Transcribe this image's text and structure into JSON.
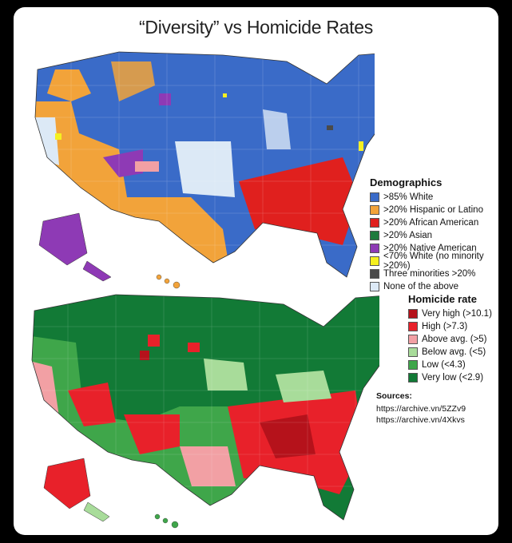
{
  "title": "“Diversity” vs Homicide Rates",
  "demographics": {
    "heading": "Demographics",
    "items": [
      {
        "label": ">85% White",
        "color": "#3a6bc8"
      },
      {
        "label": ">20% Hispanic or Latino",
        "color": "#f2a33a"
      },
      {
        "label": ">20% African American",
        "color": "#e0201e"
      },
      {
        "label": ">20% Asian",
        "color": "#1e7a3c"
      },
      {
        "label": ">20% Native American",
        "color": "#8e3ab5"
      },
      {
        "label": "<70% White (no minority >20%)",
        "color": "#f5f020"
      },
      {
        "label": "Three minorities >20%",
        "color": "#4a4a4a"
      },
      {
        "label": "None of the above",
        "color": "#dce9f6"
      }
    ]
  },
  "homicide": {
    "heading": "Homicide rate",
    "items": [
      {
        "label": "Very high (>10.1)",
        "color": "#b5121b"
      },
      {
        "label": "High (>7.3)",
        "color": "#e8212a"
      },
      {
        "label": "Above avg. (>5)",
        "color": "#f2a0a4"
      },
      {
        "label": "Below avg. (<5)",
        "color": "#a8dc9a"
      },
      {
        "label": "Low (<4.3)",
        "color": "#3fa64a"
      },
      {
        "label": "Very low (<2.9)",
        "color": "#127a36"
      }
    ]
  },
  "sources": {
    "heading": "Sources:",
    "links": [
      "https://archive.vn/5ZZv9",
      "https://archive.vn/4Xkvs"
    ]
  }
}
